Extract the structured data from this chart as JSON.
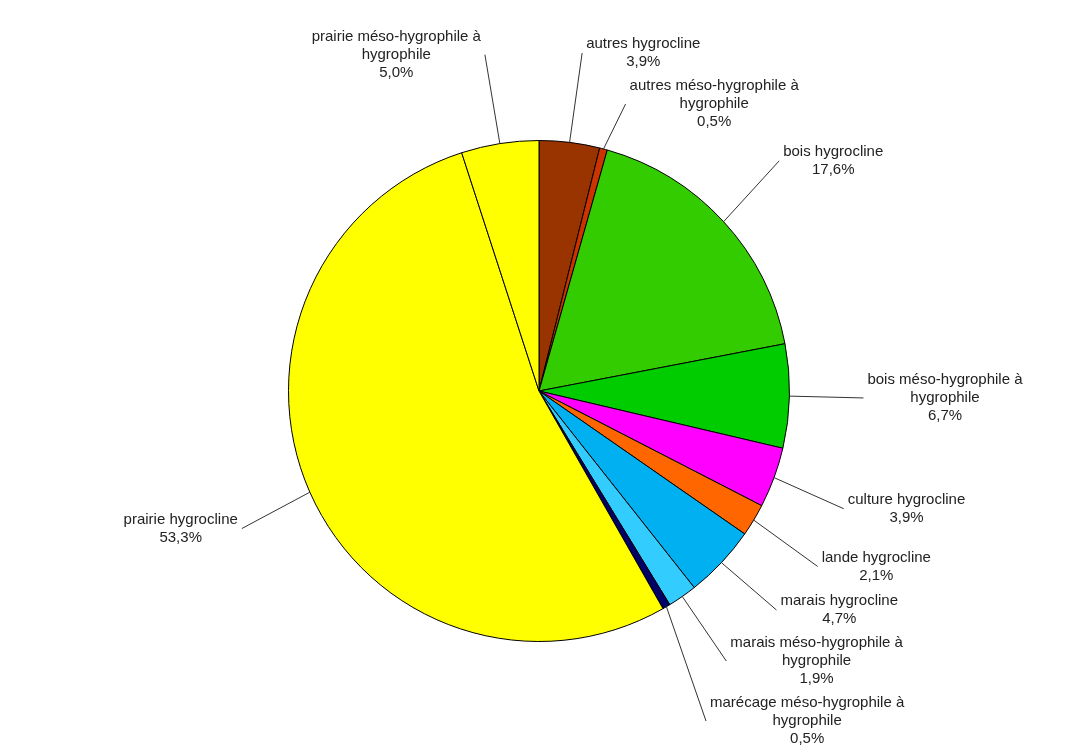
{
  "chart_data": {
    "type": "pie",
    "categories": [
      "autres hygrocline",
      "autres méso-hygrophile à hygrophile",
      "bois hygrocline",
      "bois méso-hygrophile à hygrophile",
      "culture hygrocline",
      "lande hygrocline",
      "marais hygrocline",
      "marais méso-hygrophile à hygrophile",
      "marécage méso-hygrophile à hygrophile",
      "prairie hygrocline",
      "prairie méso-hygrophile à hygrophile"
    ],
    "values": [
      3.9,
      0.5,
      17.6,
      6.7,
      3.9,
      2.1,
      4.7,
      1.9,
      0.5,
      53.3,
      5.0
    ],
    "value_labels": [
      "3,9%",
      "0,5%",
      "17,6%",
      "6,7%",
      "3,9%",
      "2,1%",
      "4,7%",
      "1,9%",
      "0,5%",
      "53,3%",
      "5,0%"
    ],
    "colors": [
      "#993300",
      "#cc3300",
      "#33cc00",
      "#00cc00",
      "#ff00ff",
      "#ff6600",
      "#00b0f0",
      "#33ccff",
      "#000066",
      "#ffff00",
      "#ffff00"
    ],
    "legend": false
  }
}
